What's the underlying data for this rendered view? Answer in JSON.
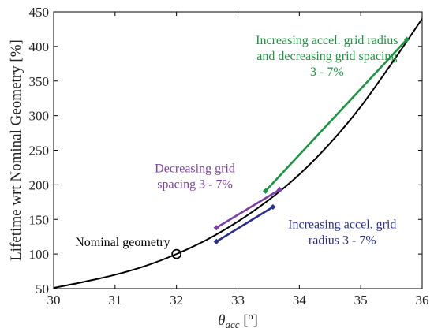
{
  "chart_data": {
    "type": "line",
    "title": "",
    "xlabel": "θacc [º]",
    "xlabel_main": "θ",
    "xlabel_sub": "acc",
    "xlabel_unit": " [º]",
    "ylabel": "Lifetime wrt Nominal Geometry [%]",
    "xlim": [
      30,
      36
    ],
    "ylim": [
      50,
      450
    ],
    "xticks": [
      30,
      31,
      32,
      33,
      34,
      35,
      36
    ],
    "yticks": [
      50,
      100,
      150,
      200,
      250,
      300,
      350,
      400,
      450
    ],
    "grid": false,
    "curve": {
      "color": "#000000",
      "x": [
        30,
        30.5,
        31,
        31.5,
        32,
        32.5,
        33,
        33.5,
        34,
        34.5,
        35,
        35.5,
        36
      ],
      "y": [
        51,
        60,
        70,
        83,
        100,
        121,
        147,
        178,
        215,
        260,
        313,
        375,
        440
      ]
    },
    "nominal_point": {
      "x": 32,
      "y": 100,
      "label": "Nominal geometry"
    },
    "series": [
      {
        "label_lines": [
          "Increasing accel. grid radius",
          "and decreasing grid spacing",
          "3 - 7%"
        ],
        "color": "#1a9641",
        "x": [
          33.45,
          35.75
        ],
        "y": [
          191,
          410
        ]
      },
      {
        "label_lines": [
          "Decreasing grid",
          "spacing 3 - 7%"
        ],
        "color": "#7b3fa8",
        "x": [
          32.65,
          33.68
        ],
        "y": [
          138,
          193
        ]
      },
      {
        "label_lines": [
          "Increasing accel. grid",
          "radius 3 - 7%"
        ],
        "color": "#2b2f8f",
        "x": [
          32.65,
          33.57
        ],
        "y": [
          118,
          168
        ]
      }
    ]
  }
}
